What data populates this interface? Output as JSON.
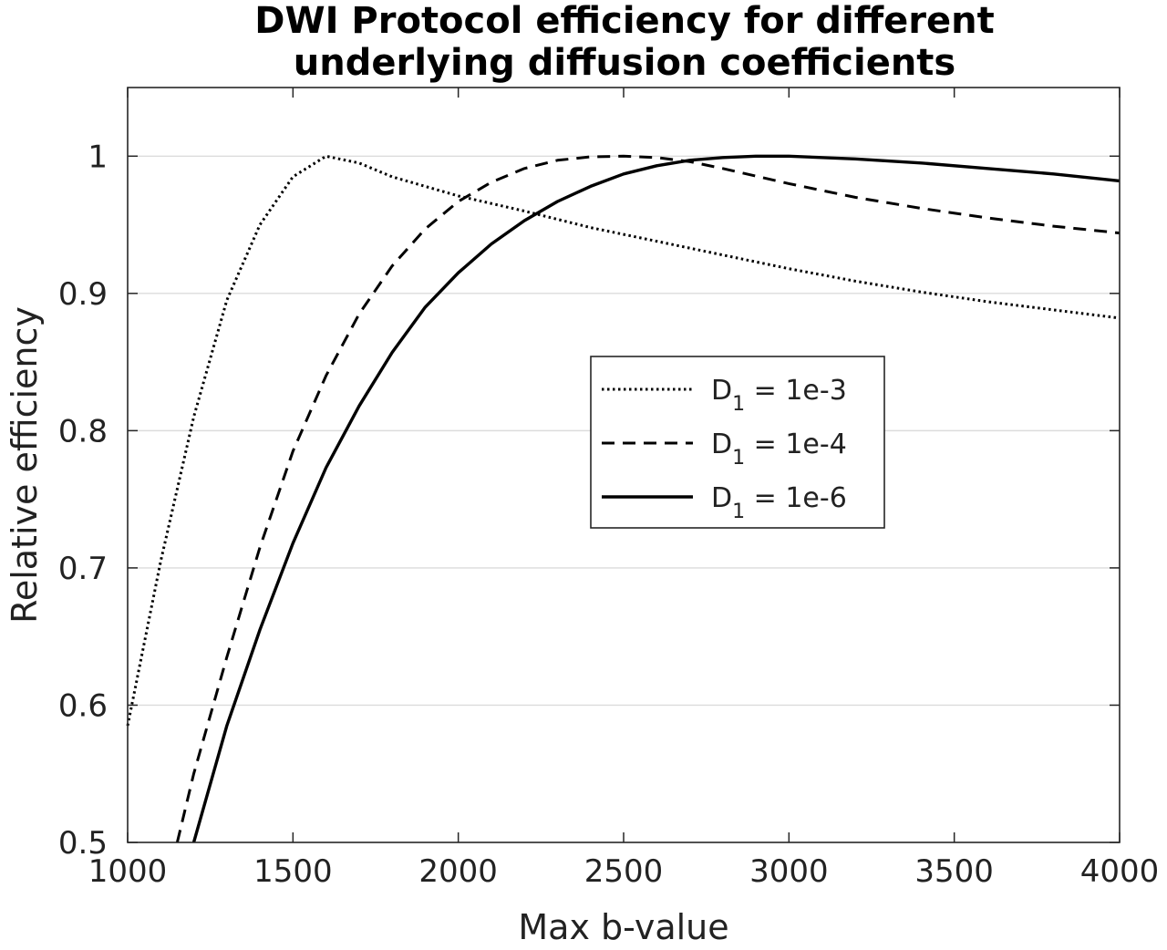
{
  "chart_data": {
    "type": "line",
    "title_lines": [
      "DWI Protocol efficiency for different",
      "underlying diffusion coefficients"
    ],
    "xlabel": "Max b-value",
    "ylabel": "Relative efficiency",
    "xlim": [
      1000,
      4000
    ],
    "ylim": [
      0.5,
      1.05
    ],
    "xticks": [
      1000,
      1500,
      2000,
      2500,
      3000,
      3500,
      4000
    ],
    "xtick_labels": [
      "1000",
      "1500",
      "2000",
      "2500",
      "3000",
      "3500",
      "4000"
    ],
    "yticks": [
      0.5,
      0.6,
      0.7,
      0.8,
      0.9,
      1.0
    ],
    "ytick_labels": [
      "0.5",
      "0.6",
      "0.7",
      "0.8",
      "0.9",
      "1"
    ],
    "grid": "horizontal",
    "legend_position": "center-right",
    "series": [
      {
        "legend_prefix": "D",
        "legend_sub": "1",
        "legend_suffix": " = 1e-3",
        "style": "dotted",
        "x": [
          1000,
          1100,
          1200,
          1300,
          1400,
          1500,
          1600,
          1700,
          1800,
          1900,
          2000,
          2200,
          2400,
          2600,
          2800,
          3000,
          3200,
          3400,
          3600,
          3800,
          4000
        ],
        "y": [
          0.585,
          0.705,
          0.81,
          0.895,
          0.95,
          0.985,
          1.0,
          0.995,
          0.985,
          0.978,
          0.971,
          0.96,
          0.948,
          0.938,
          0.928,
          0.918,
          0.909,
          0.901,
          0.894,
          0.888,
          0.882
        ]
      },
      {
        "legend_prefix": "D",
        "legend_sub": "1",
        "legend_suffix": " = 1e-4",
        "style": "dashed",
        "x": [
          1150,
          1200,
          1300,
          1400,
          1500,
          1600,
          1700,
          1800,
          1900,
          2000,
          2100,
          2200,
          2300,
          2400,
          2500,
          2600,
          2700,
          2800,
          3000,
          3200,
          3400,
          3600,
          3800,
          4000
        ],
        "y": [
          0.5,
          0.55,
          0.635,
          0.715,
          0.785,
          0.84,
          0.885,
          0.92,
          0.947,
          0.967,
          0.981,
          0.991,
          0.997,
          0.9995,
          1.0,
          0.999,
          0.996,
          0.991,
          0.98,
          0.97,
          0.962,
          0.955,
          0.949,
          0.944
        ]
      },
      {
        "legend_prefix": "D",
        "legend_sub": "1",
        "legend_suffix": " = 1e-6",
        "style": "solid",
        "x": [
          1200,
          1300,
          1400,
          1500,
          1600,
          1700,
          1800,
          1900,
          2000,
          2100,
          2200,
          2300,
          2400,
          2500,
          2600,
          2700,
          2800,
          2900,
          3000,
          3200,
          3400,
          3600,
          3800,
          4000
        ],
        "y": [
          0.5,
          0.585,
          0.655,
          0.718,
          0.773,
          0.818,
          0.857,
          0.89,
          0.915,
          0.936,
          0.953,
          0.967,
          0.978,
          0.987,
          0.993,
          0.997,
          0.999,
          1.0,
          1.0,
          0.998,
          0.995,
          0.991,
          0.987,
          0.982
        ]
      }
    ]
  }
}
